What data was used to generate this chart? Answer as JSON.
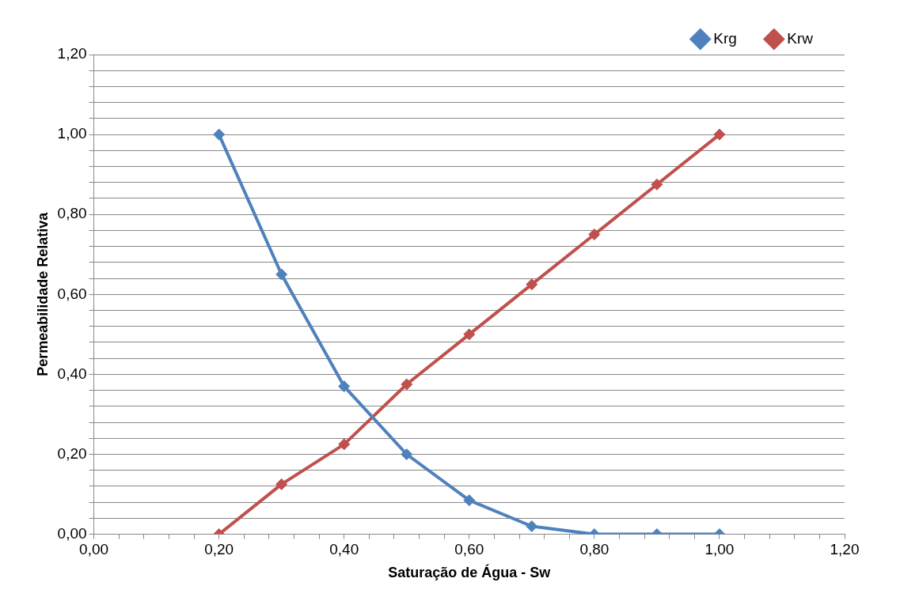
{
  "chart_data": {
    "type": "line",
    "xlabel": "Saturação de Água - Sw",
    "ylabel": "Permeabilidade Relativa",
    "x": [
      0.2,
      0.3,
      0.4,
      0.5,
      0.6,
      0.7,
      0.8,
      0.9,
      1.0
    ],
    "series": [
      {
        "name": "Krg",
        "color": "#4f81bd",
        "values": [
          1.0,
          0.65,
          0.37,
          0.2,
          0.085,
          0.02,
          0,
          0,
          0
        ]
      },
      {
        "name": "Krw",
        "color": "#c0504d",
        "values": [
          0,
          0.125,
          0.225,
          0.375,
          0.5,
          0.625,
          0.75,
          0.875,
          1.0
        ]
      }
    ],
    "xlim": [
      0,
      1.2
    ],
    "ylim": [
      0,
      1.2
    ],
    "xticks": [
      {
        "value": 0,
        "label": "0,00"
      },
      {
        "value": 0.04,
        "label": null
      },
      {
        "value": 0.08,
        "label": null
      },
      {
        "value": 0.12,
        "label": null
      },
      {
        "value": 0.16,
        "label": null
      },
      {
        "value": 0.2,
        "label": "0,20"
      },
      {
        "value": 0.24,
        "label": null
      },
      {
        "value": 0.28,
        "label": null
      },
      {
        "value": 0.32,
        "label": null
      },
      {
        "value": 0.36,
        "label": null
      },
      {
        "value": 0.4,
        "label": "0,40"
      },
      {
        "value": 0.44,
        "label": null
      },
      {
        "value": 0.48,
        "label": null
      },
      {
        "value": 0.52,
        "label": null
      },
      {
        "value": 0.56,
        "label": null
      },
      {
        "value": 0.6,
        "label": "0,60"
      },
      {
        "value": 0.64,
        "label": null
      },
      {
        "value": 0.68,
        "label": null
      },
      {
        "value": 0.72,
        "label": null
      },
      {
        "value": 0.76,
        "label": null
      },
      {
        "value": 0.8,
        "label": "0,80"
      },
      {
        "value": 0.84,
        "label": null
      },
      {
        "value": 0.88,
        "label": null
      },
      {
        "value": 0.92,
        "label": null
      },
      {
        "value": 0.96,
        "label": null
      },
      {
        "value": 1.0,
        "label": "1,00"
      },
      {
        "value": 1.04,
        "label": null
      },
      {
        "value": 1.08,
        "label": null
      },
      {
        "value": 1.12,
        "label": null
      },
      {
        "value": 1.16,
        "label": null
      },
      {
        "value": 1.2,
        "label": "1,20"
      }
    ],
    "yticks": [
      {
        "value": 0,
        "label": "0,00"
      },
      {
        "value": 0.04,
        "label": null
      },
      {
        "value": 0.08,
        "label": null
      },
      {
        "value": 0.12,
        "label": null
      },
      {
        "value": 0.16,
        "label": null
      },
      {
        "value": 0.2,
        "label": "0,20"
      },
      {
        "value": 0.24,
        "label": null
      },
      {
        "value": 0.28,
        "label": null
      },
      {
        "value": 0.32,
        "label": null
      },
      {
        "value": 0.36,
        "label": null
      },
      {
        "value": 0.4,
        "label": "0,40"
      },
      {
        "value": 0.44,
        "label": null
      },
      {
        "value": 0.48,
        "label": null
      },
      {
        "value": 0.52,
        "label": null
      },
      {
        "value": 0.56,
        "label": null
      },
      {
        "value": 0.6,
        "label": "0,60"
      },
      {
        "value": 0.64,
        "label": null
      },
      {
        "value": 0.68,
        "label": null
      },
      {
        "value": 0.72,
        "label": null
      },
      {
        "value": 0.76,
        "label": null
      },
      {
        "value": 0.8,
        "label": "0,80"
      },
      {
        "value": 0.84,
        "label": null
      },
      {
        "value": 0.88,
        "label": null
      },
      {
        "value": 0.92,
        "label": null
      },
      {
        "value": 0.96,
        "label": null
      },
      {
        "value": 1.0,
        "label": "1,00"
      },
      {
        "value": 1.04,
        "label": null
      },
      {
        "value": 1.08,
        "label": null
      },
      {
        "value": 1.12,
        "label": null
      },
      {
        "value": 1.16,
        "label": null
      },
      {
        "value": 1.2,
        "label": "1,20"
      }
    ],
    "grid": "y",
    "legend": "top right",
    "marker": "diamond",
    "line_style": "solid"
  }
}
